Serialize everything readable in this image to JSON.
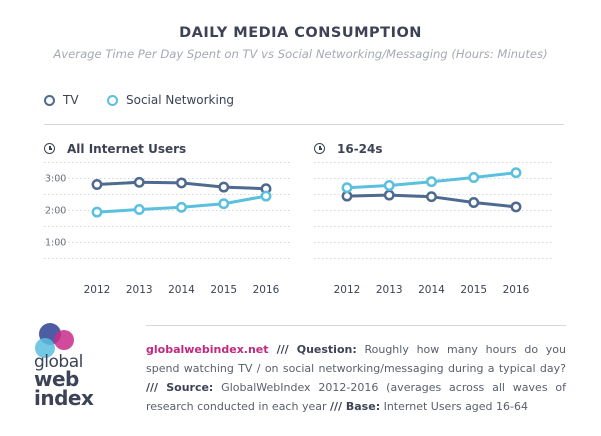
{
  "header": {
    "title": "DAILY MEDIA CONSUMPTION",
    "subtitle": "Average Time Per Day Spent on TV vs Social Networking/Messaging (Hours: Minutes)"
  },
  "legend": [
    {
      "label": "TV",
      "color": "#4e6a8f"
    },
    {
      "label": "Social Networking",
      "color": "#5bc0de"
    }
  ],
  "chart_data": [
    {
      "type": "line",
      "title": "All Internet Users",
      "x": [
        "2012",
        "2013",
        "2014",
        "2015",
        "2016"
      ],
      "yticks": [
        "3:00",
        "2:00",
        "1:00"
      ],
      "ylim": [
        0,
        3.5
      ],
      "series": [
        {
          "name": "TV",
          "values": [
            2.78,
            2.85,
            2.83,
            2.7,
            2.65
          ]
        },
        {
          "name": "Social Networking",
          "values": [
            1.92,
            2.0,
            2.07,
            2.18,
            2.42
          ]
        }
      ]
    },
    {
      "type": "line",
      "title": "16-24s",
      "x": [
        "2012",
        "2013",
        "2014",
        "2015",
        "2016"
      ],
      "yticks": [],
      "ylim": [
        0,
        3.5
      ],
      "series": [
        {
          "name": "TV",
          "values": [
            2.42,
            2.45,
            2.4,
            2.22,
            2.08
          ]
        },
        {
          "name": "Social Networking",
          "values": [
            2.68,
            2.75,
            2.87,
            3.0,
            3.15
          ]
        }
      ]
    }
  ],
  "footer": {
    "url": "globalwebindex.net",
    "sep1": " /// ",
    "question_label": "Question:",
    "question_text": " Roughly how many hours do you spend watching TV / on social networking/messaging during a typical day? ",
    "sep2": "/// ",
    "source_label": "Source:",
    "source_text": " GlobalWebIndex 2012-2016 (averages across all waves of research conducted in each year ",
    "sep3": "/// ",
    "base_label": "Base:",
    "base_text": " Internet Users aged 16-64"
  },
  "logo": {
    "line1": "global",
    "line2": "web",
    "line3": "index"
  }
}
